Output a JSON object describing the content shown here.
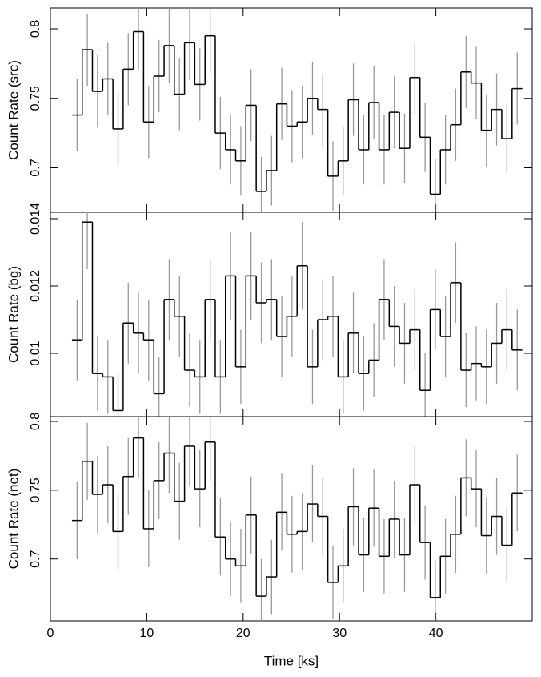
{
  "chart_data": [
    {
      "type": "step",
      "y_label": "Count Rate (src)",
      "color": "#000000",
      "error_color": "#999999",
      "xlim": [
        0,
        50
      ],
      "ylim": [
        0.668,
        0.815
      ],
      "yticks": [
        0.8,
        0.75,
        0.7
      ],
      "x": [
        2.77,
        3.83,
        4.89,
        5.96,
        7.02,
        8.08,
        9.14,
        10.2,
        11.27,
        12.33,
        13.39,
        14.45,
        15.51,
        16.58,
        17.64,
        18.7,
        19.76,
        20.82,
        21.89,
        22.95,
        24.01,
        25.07,
        26.13,
        27.2,
        28.26,
        29.32,
        30.38,
        31.44,
        32.51,
        33.57,
        34.63,
        35.69,
        36.75,
        37.82,
        38.88,
        39.94,
        41.0,
        42.06,
        43.13,
        44.19,
        45.25,
        46.31,
        47.37,
        48.44
      ],
      "values": [
        0.738,
        0.785,
        0.755,
        0.764,
        0.728,
        0.771,
        0.798,
        0.733,
        0.766,
        0.788,
        0.753,
        0.79,
        0.76,
        0.795,
        0.725,
        0.713,
        0.705,
        0.745,
        0.683,
        0.698,
        0.746,
        0.73,
        0.733,
        0.75,
        0.742,
        0.694,
        0.705,
        0.749,
        0.713,
        0.747,
        0.713,
        0.74,
        0.714,
        0.765,
        0.722,
        0.681,
        0.713,
        0.731,
        0.769,
        0.761,
        0.727,
        0.742,
        0.721,
        0.757
      ],
      "errors": [
        0.026,
        0.026,
        0.026,
        0.026,
        0.026,
        0.026,
        0.027,
        0.026,
        0.026,
        0.027,
        0.026,
        0.027,
        0.026,
        0.027,
        0.026,
        0.025,
        0.025,
        0.026,
        0.025,
        0.025,
        0.026,
        0.026,
        0.026,
        0.026,
        0.026,
        0.025,
        0.025,
        0.026,
        0.025,
        0.026,
        0.025,
        0.026,
        0.025,
        0.026,
        0.025,
        0.025,
        0.025,
        0.026,
        0.026,
        0.026,
        0.026,
        0.026,
        0.025,
        0.026
      ]
    },
    {
      "type": "step",
      "y_label": "Count Rate (bg)",
      "color": "#000000",
      "error_color": "#999999",
      "xlim": [
        0,
        50
      ],
      "ylim": [
        0.00812,
        0.01419
      ],
      "yticks": [
        0.014,
        0.012,
        0.01
      ],
      "x": [
        2.77,
        3.83,
        4.89,
        5.96,
        7.02,
        8.08,
        9.14,
        10.2,
        11.27,
        12.33,
        13.39,
        14.45,
        15.51,
        16.58,
        17.64,
        18.7,
        19.76,
        20.82,
        21.89,
        22.95,
        24.01,
        25.07,
        26.13,
        27.2,
        28.26,
        29.32,
        30.38,
        31.44,
        32.51,
        33.57,
        34.63,
        35.69,
        36.75,
        37.82,
        38.88,
        39.94,
        41.0,
        42.06,
        43.13,
        44.19,
        45.25,
        46.31,
        47.37,
        48.44
      ],
      "values": [
        0.0104,
        0.0139,
        0.0094,
        0.0093,
        0.0083,
        0.0109,
        0.0106,
        0.0104,
        0.0088,
        0.0116,
        0.0111,
        0.0095,
        0.0093,
        0.0116,
        0.0093,
        0.0123,
        0.0096,
        0.0123,
        0.0115,
        0.0116,
        0.0105,
        0.0111,
        0.0126,
        0.0096,
        0.011,
        0.0111,
        0.0093,
        0.0106,
        0.0094,
        0.0098,
        0.0116,
        0.0108,
        0.0103,
        0.0107,
        0.0089,
        0.0113,
        0.0105,
        0.0121,
        0.0095,
        0.0097,
        0.0096,
        0.0103,
        0.0107,
        0.0101
      ],
      "errors": [
        0.0012,
        0.0014,
        0.0011,
        0.0011,
        0.0011,
        0.0012,
        0.0012,
        0.0012,
        0.0011,
        0.0012,
        0.0012,
        0.0011,
        0.0011,
        0.0012,
        0.0011,
        0.0013,
        0.0011,
        0.0013,
        0.0012,
        0.0012,
        0.0012,
        0.0012,
        0.0013,
        0.0011,
        0.0012,
        0.0012,
        0.0011,
        0.0012,
        0.0011,
        0.0011,
        0.0012,
        0.0012,
        0.0012,
        0.0012,
        0.0011,
        0.0012,
        0.0012,
        0.0012,
        0.0011,
        0.0011,
        0.0011,
        0.0012,
        0.0012,
        0.0012
      ]
    },
    {
      "type": "step",
      "y_label": "Count Rate (net)",
      "x_label": "Time [ks]",
      "color": "#000000",
      "error_color": "#999999",
      "xlim": [
        0,
        50
      ],
      "xticks": [
        0,
        10,
        20,
        30,
        40
      ],
      "ylim": [
        0.655,
        0.8035
      ],
      "yticks": [
        0.8,
        0.75,
        0.7
      ],
      "x": [
        2.77,
        3.83,
        4.89,
        5.96,
        7.02,
        8.08,
        9.14,
        10.2,
        11.27,
        12.33,
        13.39,
        14.45,
        15.51,
        16.58,
        17.64,
        18.7,
        19.76,
        20.82,
        21.89,
        22.95,
        24.01,
        25.07,
        26.13,
        27.2,
        28.26,
        29.32,
        30.38,
        31.44,
        32.51,
        33.57,
        34.63,
        35.69,
        36.75,
        37.82,
        38.88,
        39.94,
        41.0,
        42.06,
        43.13,
        44.19,
        45.25,
        46.31,
        47.37,
        48.44
      ],
      "values": [
        0.728,
        0.771,
        0.747,
        0.754,
        0.72,
        0.76,
        0.788,
        0.722,
        0.757,
        0.777,
        0.742,
        0.782,
        0.751,
        0.785,
        0.716,
        0.7,
        0.695,
        0.732,
        0.673,
        0.687,
        0.734,
        0.718,
        0.72,
        0.74,
        0.731,
        0.683,
        0.695,
        0.738,
        0.703,
        0.737,
        0.702,
        0.729,
        0.703,
        0.754,
        0.712,
        0.672,
        0.702,
        0.718,
        0.759,
        0.751,
        0.717,
        0.731,
        0.71,
        0.748
      ],
      "errors": [
        0.028,
        0.028,
        0.028,
        0.028,
        0.028,
        0.028,
        0.029,
        0.028,
        0.028,
        0.029,
        0.028,
        0.029,
        0.028,
        0.029,
        0.028,
        0.027,
        0.027,
        0.028,
        0.027,
        0.027,
        0.028,
        0.028,
        0.028,
        0.028,
        0.028,
        0.027,
        0.027,
        0.028,
        0.027,
        0.028,
        0.027,
        0.028,
        0.027,
        0.028,
        0.027,
        0.027,
        0.027,
        0.028,
        0.028,
        0.028,
        0.028,
        0.028,
        0.027,
        0.028
      ]
    }
  ]
}
